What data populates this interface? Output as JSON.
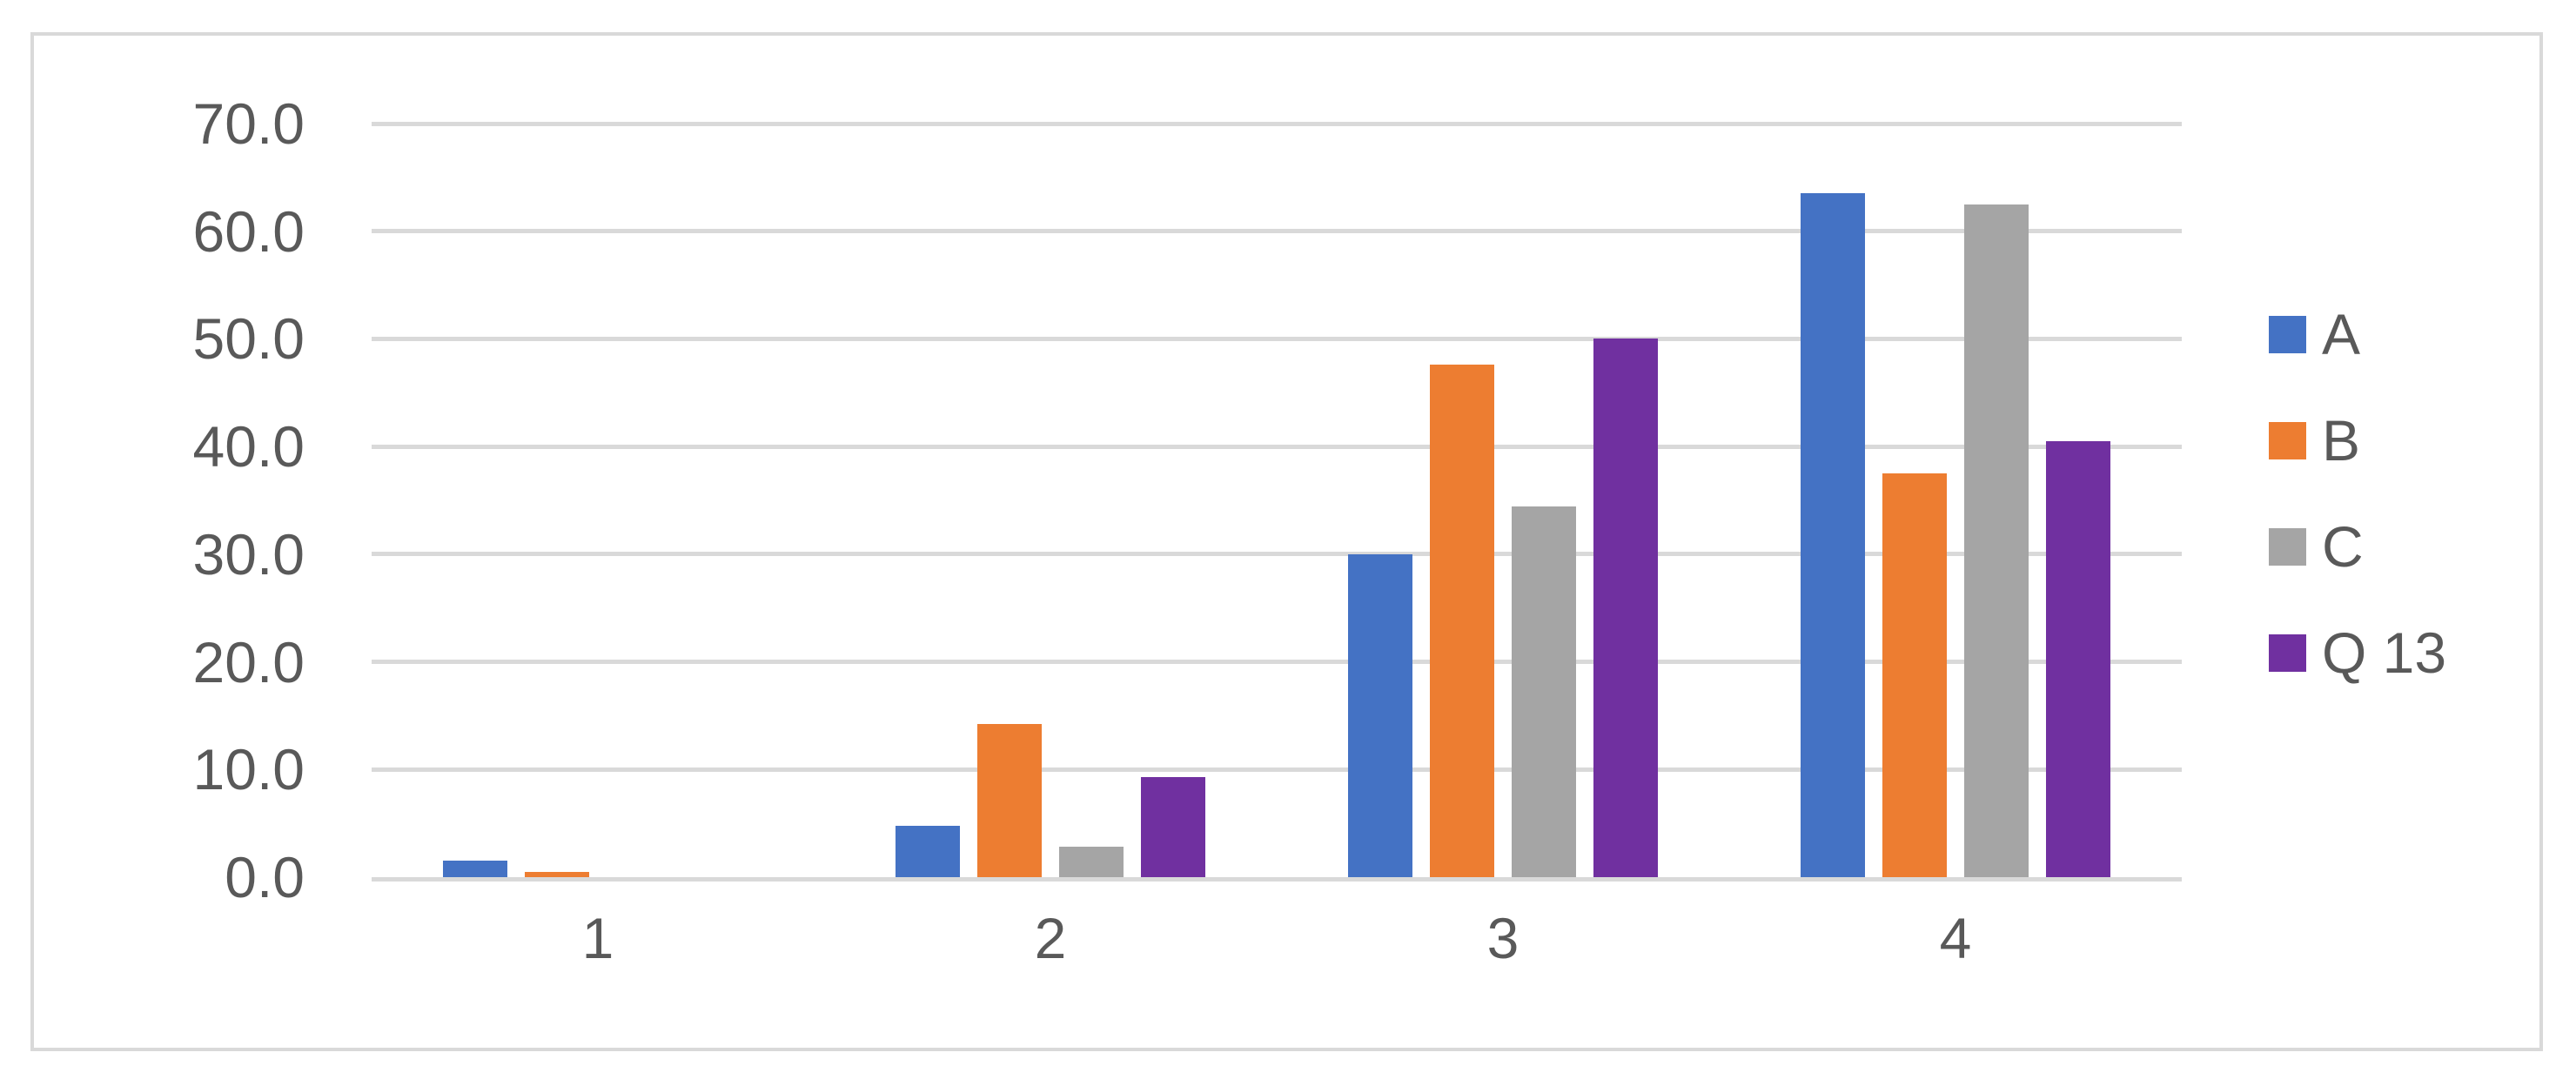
{
  "chart_data": {
    "type": "bar",
    "title": "",
    "xlabel": "",
    "ylabel": "",
    "categories": [
      "1",
      "2",
      "3",
      "4"
    ],
    "series": [
      {
        "name": "A",
        "color": "#4472C4",
        "values": [
          1.5,
          4.8,
          30.0,
          63.5
        ]
      },
      {
        "name": "B",
        "color": "#ED7D31",
        "values": [
          0.5,
          14.2,
          47.6,
          37.5
        ]
      },
      {
        "name": "C",
        "color": "#A5A5A5",
        "values": [
          0.0,
          2.8,
          34.4,
          62.5
        ]
      },
      {
        "name": "Q 13",
        "color": "#7030A0",
        "values": [
          0.0,
          9.3,
          50.0,
          40.5
        ]
      }
    ],
    "y_axis": {
      "min": 0,
      "max": 70,
      "step": 10,
      "tick_labels": [
        "0.0",
        "10.0",
        "20.0",
        "30.0",
        "40.0",
        "50.0",
        "60.0",
        "70.0"
      ]
    },
    "grid": true,
    "legend_position": "right",
    "style_colors": {
      "gridline": "#D9D9D9",
      "frame_border": "#D9D9D9",
      "axis_text": "#595959",
      "background": "#FFFFFF"
    }
  }
}
